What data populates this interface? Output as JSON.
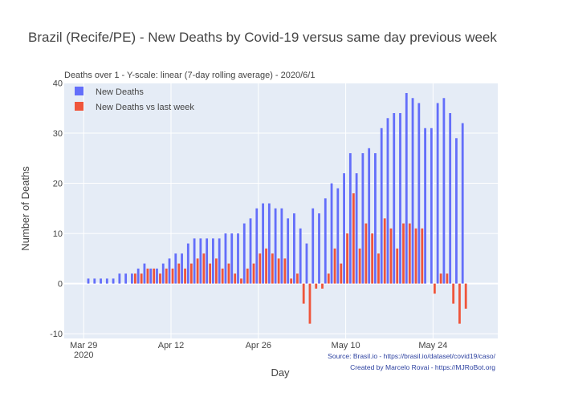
{
  "chart_data": {
    "type": "bar",
    "title": "Brazil (Recife/PE) - New Deaths by Covid-19 versus same day previous week",
    "subtitle": "Deaths over 1 - Y-scale: linear (7-day rolling average) - 2020/6/1",
    "xlabel": "Day",
    "ylabel": "Number of Deaths",
    "ylim": [
      -10.5,
      40
    ],
    "yticks": [
      -10,
      0,
      10,
      20,
      30,
      40
    ],
    "x_start": "2020-03-27",
    "x_ticks": [
      {
        "date": "2020-03-29",
        "label": "Mar 29",
        "sublabel": "2020"
      },
      {
        "date": "2020-04-12",
        "label": "Apr 12",
        "sublabel": ""
      },
      {
        "date": "2020-04-26",
        "label": "Apr 26",
        "sublabel": ""
      },
      {
        "date": "2020-05-10",
        "label": "May 10",
        "sublabel": ""
      },
      {
        "date": "2020-05-24",
        "label": "May 24",
        "sublabel": ""
      }
    ],
    "grid": true,
    "legend_position": "top-left",
    "series": [
      {
        "name": "New Deaths",
        "color": "#636efa",
        "x": [
          "2020-03-30",
          "2020-03-31",
          "2020-04-01",
          "2020-04-02",
          "2020-04-03",
          "2020-04-04",
          "2020-04-05",
          "2020-04-06",
          "2020-04-07",
          "2020-04-08",
          "2020-04-09",
          "2020-04-10",
          "2020-04-11",
          "2020-04-12",
          "2020-04-13",
          "2020-04-14",
          "2020-04-15",
          "2020-04-16",
          "2020-04-17",
          "2020-04-18",
          "2020-04-19",
          "2020-04-20",
          "2020-04-21",
          "2020-04-22",
          "2020-04-23",
          "2020-04-24",
          "2020-04-25",
          "2020-04-26",
          "2020-04-27",
          "2020-04-28",
          "2020-04-29",
          "2020-04-30",
          "2020-05-01",
          "2020-05-02",
          "2020-05-03",
          "2020-05-04",
          "2020-05-05",
          "2020-05-06",
          "2020-05-07",
          "2020-05-08",
          "2020-05-09",
          "2020-05-10",
          "2020-05-11",
          "2020-05-12",
          "2020-05-13",
          "2020-05-14",
          "2020-05-15",
          "2020-05-16",
          "2020-05-17",
          "2020-05-18",
          "2020-05-19",
          "2020-05-20",
          "2020-05-21",
          "2020-05-22",
          "2020-05-23",
          "2020-05-24",
          "2020-05-25",
          "2020-05-26",
          "2020-05-27",
          "2020-05-28",
          "2020-05-29",
          "2020-05-30",
          "2020-05-31",
          "2020-06-01"
        ],
        "values": [
          1,
          1,
          1,
          1,
          1,
          2,
          2,
          2,
          3,
          4,
          3,
          3,
          4,
          5,
          6,
          6,
          8,
          9,
          9,
          9,
          9,
          9,
          10,
          10,
          10,
          12,
          13,
          15,
          16,
          16,
          15,
          15,
          13,
          14,
          11,
          8,
          15,
          14,
          17,
          20,
          19,
          22,
          26,
          22,
          26,
          27,
          26,
          31,
          33,
          34,
          34,
          38,
          37,
          36,
          31,
          31,
          36,
          37,
          34,
          29,
          32,
          null,
          null,
          null
        ]
      },
      {
        "name": "New Deaths vs last week",
        "color": "#ef553b",
        "x": [
          "2020-04-06",
          "2020-04-07",
          "2020-04-08",
          "2020-04-09",
          "2020-04-10",
          "2020-04-11",
          "2020-04-12",
          "2020-04-13",
          "2020-04-14",
          "2020-04-15",
          "2020-04-16",
          "2020-04-17",
          "2020-04-18",
          "2020-04-19",
          "2020-04-20",
          "2020-04-21",
          "2020-04-22",
          "2020-04-23",
          "2020-04-24",
          "2020-04-25",
          "2020-04-26",
          "2020-04-27",
          "2020-04-28",
          "2020-04-29",
          "2020-04-30",
          "2020-05-01",
          "2020-05-02",
          "2020-05-03",
          "2020-05-04",
          "2020-05-05",
          "2020-05-06",
          "2020-05-07",
          "2020-05-08",
          "2020-05-09",
          "2020-05-10",
          "2020-05-11",
          "2020-05-12",
          "2020-05-13",
          "2020-05-14",
          "2020-05-15",
          "2020-05-16",
          "2020-05-17",
          "2020-05-18",
          "2020-05-19",
          "2020-05-20",
          "2020-05-21",
          "2020-05-22",
          "2020-05-23",
          "2020-05-24",
          "2020-05-25",
          "2020-05-26",
          "2020-05-27",
          "2020-05-28",
          "2020-05-29",
          "2020-05-30",
          "2020-05-31"
        ],
        "values": [
          2,
          2,
          3,
          3,
          2,
          3,
          3,
          4,
          3,
          4,
          5,
          6,
          4,
          5,
          3,
          4,
          2,
          1,
          3,
          4,
          6,
          7,
          6,
          5,
          5,
          1,
          2,
          -4,
          -8,
          -1,
          -1,
          2,
          7,
          4,
          10,
          18,
          7,
          12,
          10,
          6,
          13,
          11,
          7,
          12,
          12,
          11,
          11,
          0,
          -2,
          2,
          2,
          -4,
          -8,
          -5,
          0,
          0
        ]
      }
    ],
    "annotations": [
      "Source: Brasil.io - https://brasil.io/dataset/covid19/caso/",
      "Created by Marcelo Rovai - https://MJRoBot.org"
    ]
  }
}
